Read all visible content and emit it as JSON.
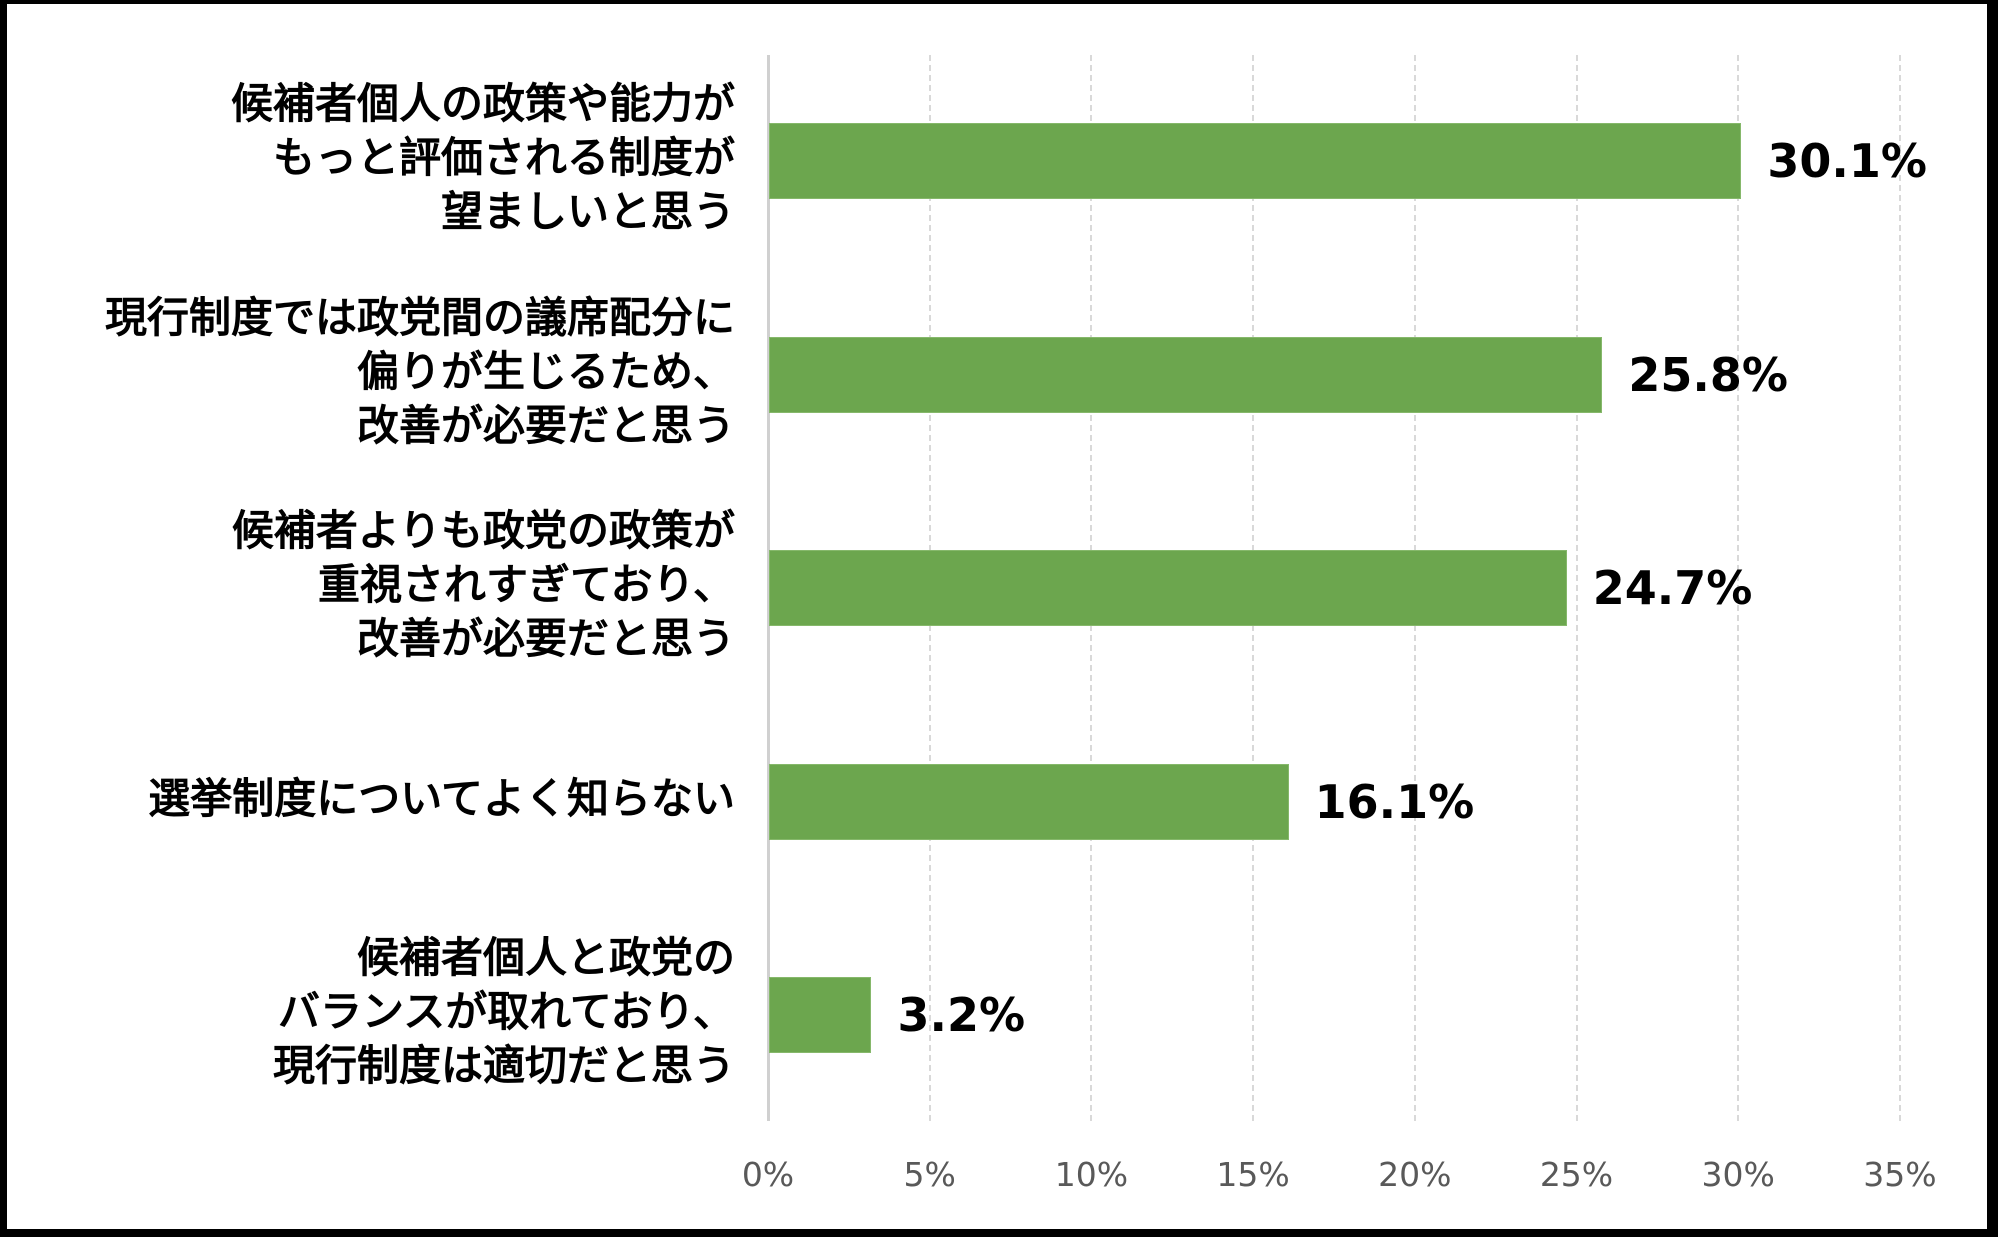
{
  "chart_data": {
    "type": "bar",
    "orientation": "horizontal",
    "title": "",
    "xlabel": "",
    "ylabel": "",
    "categories": [
      "候補者個人の政策や能力がもっと評価される制度が望ましいと思う",
      "現行制度では政党間の議席配分に偏りが生じるため、改善が必要だと思う",
      "候補者よりも政党の政策が重視されすぎており、改善が必要だと思う",
      "選挙制度についてよく知らない",
      "候補者個人と政党のバランスが取れており、現行制度は適切だと思う"
    ],
    "category_lines": [
      [
        "候補者個人の政策や能力が",
        "もっと評価される制度が",
        "望ましいと思う"
      ],
      [
        "現行制度では政党間の議席配分に",
        "偏りが生じるため、",
        "改善が必要だと思う"
      ],
      [
        "候補者よりも政党の政策が",
        "重視されすぎており、",
        "改善が必要だと思う"
      ],
      [
        "選挙制度についてよく知らない"
      ],
      [
        "候補者個人と政党の",
        "バランスが取れており、",
        "現行制度は適切だと思う"
      ]
    ],
    "values": [
      30.1,
      25.8,
      24.7,
      16.1,
      3.2
    ],
    "value_labels": [
      "30.1%",
      "25.8%",
      "24.7%",
      "16.1%",
      "3.2%"
    ],
    "xlim": [
      0,
      35
    ],
    "x_ticks": [
      0,
      5,
      10,
      15,
      20,
      25,
      30,
      35
    ],
    "x_tick_labels": [
      "0%",
      "5%",
      "10%",
      "15%",
      "20%",
      "25%",
      "30%",
      "35%"
    ],
    "grid": {
      "vertical": true,
      "style": "dashed"
    },
    "legend": null,
    "colors": {
      "bar": "#6ca64e",
      "tick_label": "#595959",
      "gridline": "#d9d9d9",
      "border": "#000000"
    }
  }
}
